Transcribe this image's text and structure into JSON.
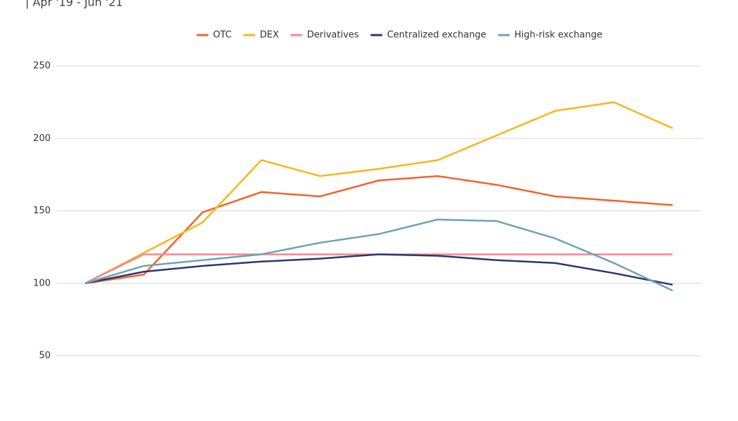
{
  "chart_data": {
    "type": "line",
    "subtitle": "| Apr '19 - Jun '21",
    "categories": [
      null,
      null,
      null,
      null,
      null,
      null,
      null,
      null,
      null,
      null,
      null
    ],
    "series": [
      {
        "name": "OTC",
        "color": "#f4622a",
        "values": [
          100,
          106,
          149,
          163,
          160,
          171,
          174,
          168,
          160,
          157,
          154
        ]
      },
      {
        "name": "DEX",
        "color": "#f9b51b",
        "values": [
          100,
          121,
          142,
          185,
          174,
          179,
          185,
          202,
          219,
          225,
          207
        ]
      },
      {
        "name": "Derivatives",
        "color": "#f08a8f",
        "values": [
          100,
          120,
          120,
          120,
          120,
          120,
          120,
          120,
          120,
          120,
          120
        ]
      },
      {
        "name": "Centralized exchange",
        "color": "#2d3670",
        "values": [
          100,
          108,
          112,
          115,
          117,
          120,
          119,
          116,
          114,
          107,
          99
        ]
      },
      {
        "name": "High-risk exchange",
        "color": "#6aa3b4",
        "values": [
          100,
          112,
          116,
          120,
          128,
          134,
          144,
          143,
          131,
          114,
          95
        ]
      }
    ],
    "ylim": [
      50,
      250
    ],
    "yticks": [
      50,
      100,
      150,
      200,
      250
    ],
    "grid": true,
    "legend": "top"
  }
}
